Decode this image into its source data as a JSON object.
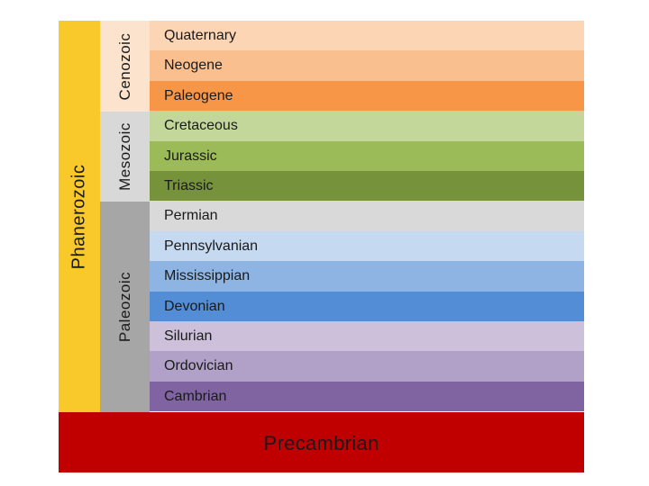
{
  "eon": {
    "label": "Phanerozoic",
    "color": "#f9c92b"
  },
  "eras": [
    {
      "label": "Cenozoic",
      "color": "#fbe3ce"
    },
    {
      "label": "Mesozoic",
      "color": "#d8d8d8"
    },
    {
      "label": "Paleozoic",
      "color": "#a6a6a6"
    }
  ],
  "periods": [
    {
      "label": "Quaternary",
      "color": "#fcd5b4"
    },
    {
      "label": "Neogene",
      "color": "#fabf8f"
    },
    {
      "label": "Paleogene",
      "color": "#f79646"
    },
    {
      "label": "Cretaceous",
      "color": "#c4d79b"
    },
    {
      "label": "Jurassic",
      "color": "#9bbb59"
    },
    {
      "label": "Triassic",
      "color": "#76933c"
    },
    {
      "label": "Permian",
      "color": "#d9d9d9"
    },
    {
      "label": "Pennsylvanian",
      "color": "#c5d9f1"
    },
    {
      "label": "Mississippian",
      "color": "#8db4e2"
    },
    {
      "label": "Devonian",
      "color": "#538dd5"
    },
    {
      "label": "Silurian",
      "color": "#ccc0da"
    },
    {
      "label": "Ordovician",
      "color": "#b1a0c7"
    },
    {
      "label": "Cambrian",
      "color": "#8064a2"
    }
  ],
  "precambrian": {
    "label": "Precambrian",
    "color": "#c00000"
  }
}
